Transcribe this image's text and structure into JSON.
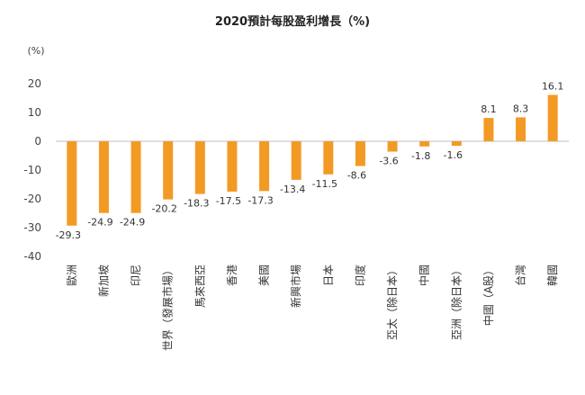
{
  "chart_data": {
    "type": "bar",
    "title": "2020預計每股盈利增長（%)",
    "ylabel": "(%)",
    "xlabel": "",
    "ylim": [
      -40,
      20
    ],
    "yticks": [
      20,
      10,
      0,
      -10,
      -20,
      -30,
      -40
    ],
    "grid": false,
    "legend": "none",
    "bar_color": "#F39A24",
    "categories": [
      "歐洲",
      "新加坡",
      "印尼",
      "世界（發展市場）",
      "馬來西亞",
      "香港",
      "美國",
      "新興市場",
      "日本",
      "印度",
      "亞太（除日本）",
      "中國",
      "亞洲（除日本）",
      "中國（A股）",
      "台灣",
      "韓國"
    ],
    "values": [
      -29.3,
      -24.9,
      -24.9,
      -20.2,
      -18.3,
      -17.5,
      -17.3,
      -13.4,
      -11.5,
      -8.6,
      -3.6,
      -1.8,
      -1.6,
      8.1,
      8.3,
      16.1
    ]
  }
}
